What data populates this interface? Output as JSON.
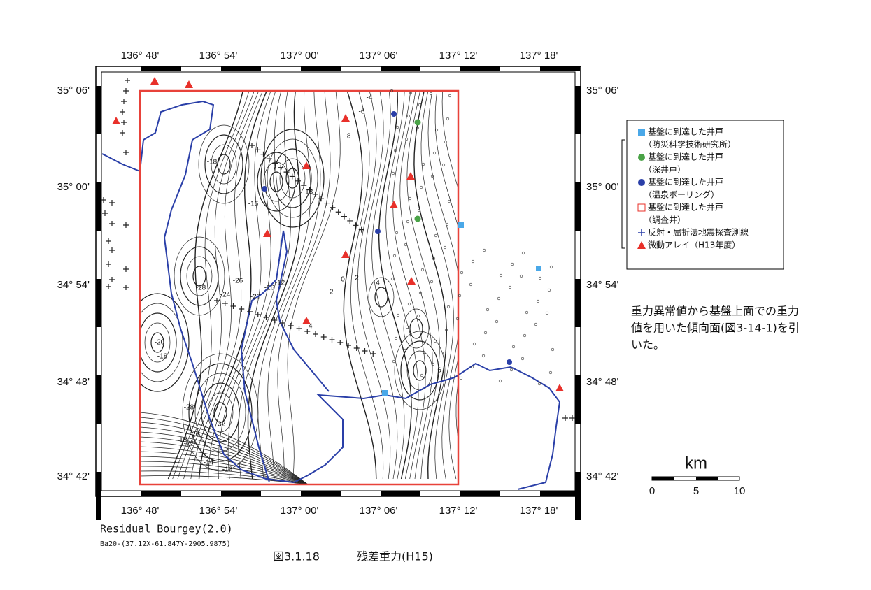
{
  "axes": {
    "longitude": [
      "136° 48'",
      "136° 54'",
      "137° 00'",
      "137° 06'",
      "137° 12'",
      "137° 18'"
    ],
    "latitude": [
      "35° 06'",
      "35° 00'",
      "34° 54'",
      "34° 48'",
      "34° 42'"
    ]
  },
  "legend": {
    "items": [
      {
        "label": "基盤に到達した井戸",
        "sub": "（防災科学技術研究所）"
      },
      {
        "label": "基盤に到達した井戸",
        "sub": "（深井戸）"
      },
      {
        "label": "基盤に到達した井戸",
        "sub": "（温泉ボーリング）"
      },
      {
        "label": "基盤に到達した井戸",
        "sub": "（調査井）"
      },
      {
        "label": "反射・屈折法地震探査測線"
      },
      {
        "label": "微動アレイ（H13年度）"
      }
    ]
  },
  "note": [
    "重力異常値から基盤上面での重力",
    "値を用いた傾向面(図3-14-1)を引",
    "いた。"
  ],
  "scale": {
    "unit": "km",
    "ticks": [
      "0",
      "5",
      "10"
    ]
  },
  "footer": {
    "title": "Residual Bourgey(2.0)",
    "formula": "Ba20-(37.12X-61.847Y-2905.9875)",
    "figure": "図3.1.18",
    "caption": "残差重力(H15)"
  },
  "contour_labels": [
    "-18",
    "-16",
    "-18",
    "-6",
    "-4",
    "-8",
    "-28",
    "-26",
    "-24",
    "-20",
    "-16",
    "-12",
    "-2",
    "0",
    "2",
    "4",
    "6",
    "-32",
    "-28",
    "-18",
    "-20",
    "-26",
    "-22",
    "-18",
    "-14",
    "-16",
    "-4"
  ]
}
